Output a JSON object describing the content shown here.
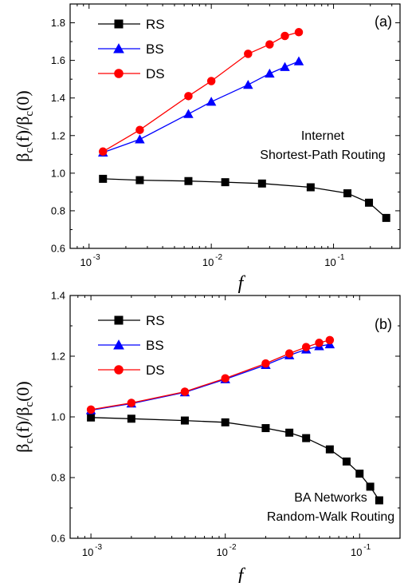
{
  "chart_data": [
    {
      "type": "line",
      "panel_label": "(a)",
      "annotation": [
        "Internet",
        "Shortest-Path Routing"
      ],
      "xlabel": "f",
      "ylabel": "βc(f)/βc(0)",
      "x_scale": "log",
      "xlim": [
        0.0007,
        0.35
      ],
      "ylim": [
        0.6,
        1.9
      ],
      "x_ticks": [
        0.001,
        0.01,
        0.1
      ],
      "x_tick_labels": [
        [
          "10",
          "-3"
        ],
        [
          "10",
          "-2"
        ],
        [
          "10",
          "-1"
        ]
      ],
      "y_ticks": [
        0.6,
        0.8,
        1.0,
        1.2,
        1.4,
        1.6,
        1.8
      ],
      "y_tick_labels": [
        "0.6",
        "0.8",
        "1.0",
        "1.2",
        "1.4",
        "1.6",
        "1.8"
      ],
      "grid": false,
      "legend_position": "top-left",
      "series": [
        {
          "name": "RS",
          "marker": "square",
          "color": "#000000",
          "line_color": "#000000",
          "x": [
            0.0013,
            0.0026,
            0.0065,
            0.013,
            0.026,
            0.065,
            0.13,
            0.195,
            0.27
          ],
          "y": [
            0.97,
            0.963,
            0.958,
            0.952,
            0.945,
            0.925,
            0.893,
            0.843,
            0.762
          ]
        },
        {
          "name": "BS",
          "marker": "triangle",
          "color": "#0000ff",
          "line_color": "#0000ff",
          "x": [
            0.0013,
            0.0026,
            0.0065,
            0.01,
            0.02,
            0.03,
            0.04,
            0.052
          ],
          "y": [
            1.11,
            1.18,
            1.315,
            1.38,
            1.47,
            1.53,
            1.565,
            1.595
          ]
        },
        {
          "name": "DS",
          "marker": "circle",
          "color": "#ff0000",
          "line_color": "#ff0000",
          "x": [
            0.0013,
            0.0026,
            0.0065,
            0.01,
            0.02,
            0.03,
            0.04,
            0.052
          ],
          "y": [
            1.115,
            1.23,
            1.41,
            1.49,
            1.635,
            1.685,
            1.73,
            1.75
          ]
        }
      ]
    },
    {
      "type": "line",
      "panel_label": "(b)",
      "annotation": [
        "BA Networks",
        "Random-Walk Routing"
      ],
      "xlabel": "f",
      "ylabel": "βc(f)/βc(0)",
      "x_scale": "log",
      "xlim": [
        0.0007,
        0.2
      ],
      "ylim": [
        0.6,
        1.4
      ],
      "x_ticks": [
        0.001,
        0.01,
        0.1
      ],
      "x_tick_labels": [
        [
          "10",
          "-3"
        ],
        [
          "10",
          "-2"
        ],
        [
          "10",
          "-1"
        ]
      ],
      "y_ticks": [
        0.6,
        0.8,
        1.0,
        1.2,
        1.4
      ],
      "y_tick_labels": [
        "0.6",
        "0.8",
        "1.0",
        "1.2",
        "1.4"
      ],
      "grid": false,
      "legend_position": "top-left",
      "series": [
        {
          "name": "RS",
          "marker": "square",
          "color": "#000000",
          "line_color": "#000000",
          "x": [
            0.001,
            0.002,
            0.005,
            0.01,
            0.02,
            0.03,
            0.04,
            0.06,
            0.08,
            0.1,
            0.12,
            0.14
          ],
          "y": [
            0.998,
            0.994,
            0.988,
            0.982,
            0.963,
            0.948,
            0.93,
            0.893,
            0.853,
            0.813,
            0.77,
            0.725
          ]
        },
        {
          "name": "BS",
          "marker": "triangle",
          "color": "#0000ff",
          "line_color": "#0000ff",
          "x": [
            0.001,
            0.002,
            0.005,
            0.01,
            0.02,
            0.03,
            0.04,
            0.05,
            0.06
          ],
          "y": [
            1.022,
            1.044,
            1.081,
            1.124,
            1.171,
            1.203,
            1.222,
            1.233,
            1.239
          ]
        },
        {
          "name": "DS",
          "marker": "circle",
          "color": "#ff0000",
          "line_color": "#ff0000",
          "x": [
            0.001,
            0.002,
            0.005,
            0.01,
            0.02,
            0.03,
            0.04,
            0.05,
            0.06
          ],
          "y": [
            1.024,
            1.046,
            1.083,
            1.127,
            1.176,
            1.209,
            1.23,
            1.244,
            1.253
          ]
        }
      ]
    }
  ]
}
